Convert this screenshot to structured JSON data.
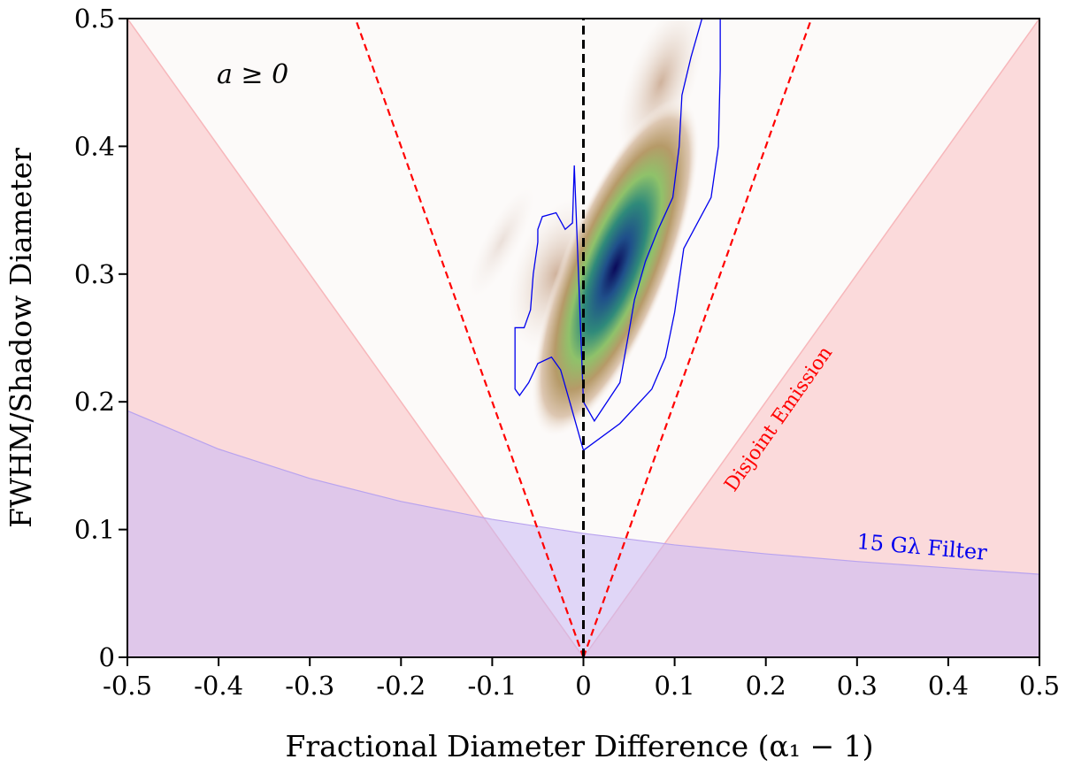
{
  "chart_data": {
    "type": "heatmap",
    "xlabel": "Fractional Diameter Difference (α₁ − 1)",
    "ylabel": "FWHM/Shadow Diameter",
    "xlim": [
      -0.5,
      0.5
    ],
    "ylim": [
      0,
      0.5
    ],
    "x_ticks": [
      -0.5,
      -0.4,
      -0.3,
      -0.2,
      -0.1,
      0,
      0.1,
      0.2,
      0.3,
      0.4,
      0.5
    ],
    "x_tick_labels": [
      "-0.5",
      "-0.4",
      "-0.3",
      "-0.2",
      "-0.1",
      "0",
      "0.1",
      "0.2",
      "0.3",
      "0.4",
      "0.5"
    ],
    "y_ticks": [
      0,
      0.1,
      0.2,
      0.3,
      0.4,
      0.5
    ],
    "y_tick_labels": [
      "0",
      "0.1",
      "0.2",
      "0.3",
      "0.4",
      "0.5"
    ],
    "excluded_region_boundary": {
      "description": "pink cone |x| = y",
      "slope": 1.0
    },
    "disjoint_emission_boundary": {
      "slope": 0.5
    },
    "filter_curve": {
      "x": [
        -0.5,
        -0.45,
        -0.4,
        -0.3,
        -0.2,
        -0.1,
        0,
        0.1,
        0.2,
        0.3,
        0.4,
        0.5
      ],
      "y": [
        0.193,
        0.178,
        0.163,
        0.14,
        0.122,
        0.108,
        0.097,
        0.088,
        0.081,
        0.075,
        0.07,
        0.065
      ]
    },
    "density_peak": {
      "x": 0.035,
      "y": 0.305
    },
    "contour": {
      "x": [
        0.0,
        0.04,
        0.075,
        0.09,
        0.1,
        0.11,
        0.14,
        0.148,
        0.15,
        0.15,
        0.13,
        0.118,
        0.108,
        0.105,
        0.098,
        0.082,
        0.068,
        0.056,
        0.05,
        0.04,
        0.012,
        0.0,
        -0.01,
        -0.012,
        -0.02,
        -0.03,
        -0.045,
        -0.05,
        -0.05,
        -0.055,
        -0.058,
        -0.065,
        -0.075,
        -0.075,
        -0.07,
        -0.06,
        -0.05,
        -0.035,
        -0.025,
        -0.015,
        0.0
      ],
      "y": [
        0.162,
        0.183,
        0.21,
        0.235,
        0.27,
        0.32,
        0.36,
        0.4,
        0.46,
        0.5,
        0.5,
        0.47,
        0.44,
        0.4,
        0.36,
        0.335,
        0.31,
        0.28,
        0.255,
        0.215,
        0.185,
        0.2,
        0.385,
        0.34,
        0.335,
        0.348,
        0.345,
        0.335,
        0.325,
        0.3,
        0.272,
        0.258,
        0.258,
        0.21,
        0.205,
        0.215,
        0.23,
        0.235,
        0.225,
        0.2,
        0.162
      ]
    },
    "annotations": {
      "spin": "a ≥ 0",
      "disjoint": "Disjoint Emission",
      "filter": "15 Gλ Filter"
    },
    "colors": {
      "pink_fill": "#fbdadb",
      "filter_fill": "#d9b6e4",
      "red_dash": "#ff0000",
      "contour": "#0000ee",
      "center_dash": "#000000"
    }
  }
}
